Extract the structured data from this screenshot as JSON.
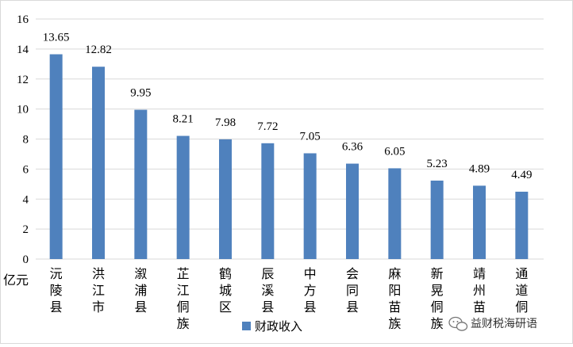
{
  "chart_data": {
    "type": "bar",
    "categories": [
      "沅陵县",
      "洪江市",
      "溆浦县",
      "芷江侗族",
      "鹤城区",
      "辰溪县",
      "中方县",
      "会同县",
      "麻阳苗族",
      "新晃侗族",
      "靖州苗",
      "通道侗"
    ],
    "series": [
      {
        "name": "财政收入",
        "values": [
          13.65,
          12.82,
          9.95,
          8.21,
          7.98,
          7.72,
          7.05,
          6.36,
          6.05,
          5.23,
          4.89,
          4.49
        ],
        "color": "#4f81bd"
      }
    ],
    "data_labels": [
      "13.65",
      "12.82",
      "9.95",
      "8.21",
      "7.98",
      "7.72",
      "7.05",
      "6.36",
      "6.05",
      "5.23",
      "4.89",
      "4.49"
    ],
    "y_ticks": [
      "0",
      "2",
      "4",
      "6",
      "8",
      "10",
      "12",
      "14",
      "16"
    ],
    "ylim": [
      0,
      16
    ],
    "ylabel": "",
    "xlabel": "",
    "unit_label": "亿元",
    "grid": true,
    "legend_position": "bottom"
  },
  "watermark": {
    "text": "益财税海研语",
    "icon": "wechat-icon"
  }
}
